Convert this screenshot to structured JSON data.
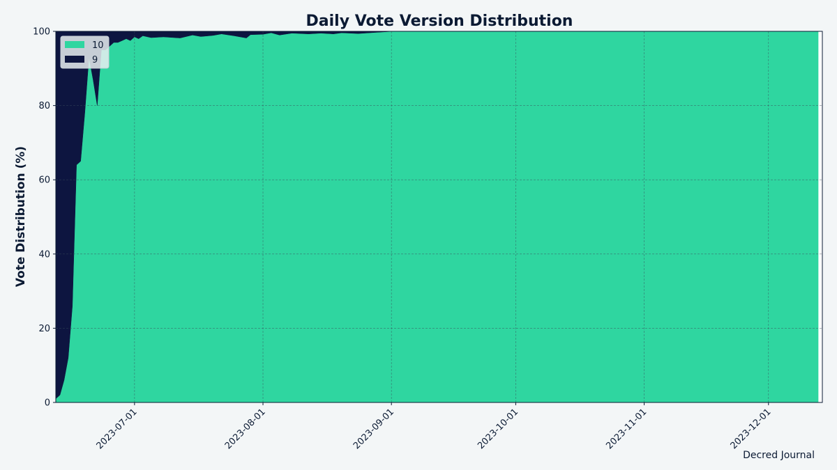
{
  "chart_data": {
    "type": "area",
    "stacked": true,
    "title": "Daily Vote Version Distribution",
    "xlabel": "",
    "ylabel": "Vote Distribution (%)",
    "ylim": [
      0,
      100
    ],
    "xlim": [
      "2023-06-12",
      "2023-12-14"
    ],
    "yticks": [
      0,
      20,
      40,
      60,
      80,
      100
    ],
    "xticks": [
      "2023-07-01",
      "2023-08-01",
      "2023-09-01",
      "2023-10-01",
      "2023-11-01",
      "2023-12-01"
    ],
    "grid": true,
    "legend_position": "top-left",
    "series": [
      {
        "name": "10",
        "color": "#2fd6a0",
        "points": [
          [
            "2023-06-12",
            1
          ],
          [
            "2023-06-13",
            2
          ],
          [
            "2023-06-14",
            6
          ],
          [
            "2023-06-15",
            12
          ],
          [
            "2023-06-16",
            26
          ],
          [
            "2023-06-17",
            64
          ],
          [
            "2023-06-18",
            65
          ],
          [
            "2023-06-19",
            78
          ],
          [
            "2023-06-20",
            93
          ],
          [
            "2023-06-21",
            87
          ],
          [
            "2023-06-22",
            80
          ],
          [
            "2023-06-23",
            95
          ],
          [
            "2023-06-24",
            95
          ],
          [
            "2023-06-25",
            96
          ],
          [
            "2023-06-26",
            97
          ],
          [
            "2023-06-27",
            97
          ],
          [
            "2023-06-28",
            97.5
          ],
          [
            "2023-06-29",
            98
          ],
          [
            "2023-06-30",
            97.5
          ],
          [
            "2023-07-01",
            98.5
          ],
          [
            "2023-07-02",
            98
          ],
          [
            "2023-07-03",
            98.8
          ],
          [
            "2023-07-05",
            98.3
          ],
          [
            "2023-07-08",
            98.5
          ],
          [
            "2023-07-12",
            98.2
          ],
          [
            "2023-07-15",
            99
          ],
          [
            "2023-07-17",
            98.6
          ],
          [
            "2023-07-20",
            98.9
          ],
          [
            "2023-07-22",
            99.3
          ],
          [
            "2023-07-25",
            98.8
          ],
          [
            "2023-07-28",
            98.2
          ],
          [
            "2023-07-29",
            99.1
          ],
          [
            "2023-08-01",
            99.2
          ],
          [
            "2023-08-03",
            99.6
          ],
          [
            "2023-08-05",
            99
          ],
          [
            "2023-08-08",
            99.5
          ],
          [
            "2023-08-12",
            99.3
          ],
          [
            "2023-08-15",
            99.5
          ],
          [
            "2023-08-18",
            99.3
          ],
          [
            "2023-08-20",
            99.6
          ],
          [
            "2023-08-24",
            99.4
          ],
          [
            "2023-08-28",
            99.7
          ],
          [
            "2023-08-31",
            99.9
          ],
          [
            "2023-09-01",
            100
          ],
          [
            "2023-12-13",
            100
          ]
        ]
      },
      {
        "name": "9",
        "color": "#0d1540",
        "points": [
          [
            "2023-06-12",
            99
          ],
          [
            "2023-06-13",
            98
          ],
          [
            "2023-06-14",
            94
          ],
          [
            "2023-06-15",
            88
          ],
          [
            "2023-06-16",
            74
          ],
          [
            "2023-06-17",
            36
          ],
          [
            "2023-06-18",
            35
          ],
          [
            "2023-06-19",
            22
          ],
          [
            "2023-06-20",
            7
          ],
          [
            "2023-06-21",
            13
          ],
          [
            "2023-06-22",
            20
          ],
          [
            "2023-06-23",
            5
          ],
          [
            "2023-06-24",
            5
          ],
          [
            "2023-06-25",
            4
          ],
          [
            "2023-06-26",
            3
          ],
          [
            "2023-06-27",
            3
          ],
          [
            "2023-06-28",
            2.5
          ],
          [
            "2023-06-29",
            2
          ],
          [
            "2023-06-30",
            2.5
          ],
          [
            "2023-07-01",
            1.5
          ],
          [
            "2023-07-02",
            2
          ],
          [
            "2023-07-03",
            1.2
          ],
          [
            "2023-07-05",
            1.7
          ],
          [
            "2023-07-08",
            1.5
          ],
          [
            "2023-07-12",
            1.8
          ],
          [
            "2023-07-15",
            1
          ],
          [
            "2023-07-17",
            1.4
          ],
          [
            "2023-07-20",
            1.1
          ],
          [
            "2023-07-22",
            0.7
          ],
          [
            "2023-07-25",
            1.2
          ],
          [
            "2023-07-28",
            1.8
          ],
          [
            "2023-07-29",
            0.9
          ],
          [
            "2023-08-01",
            0.8
          ],
          [
            "2023-08-03",
            0.4
          ],
          [
            "2023-08-05",
            1
          ],
          [
            "2023-08-08",
            0.5
          ],
          [
            "2023-08-12",
            0.7
          ],
          [
            "2023-08-15",
            0.5
          ],
          [
            "2023-08-18",
            0.7
          ],
          [
            "2023-08-20",
            0.4
          ],
          [
            "2023-08-24",
            0.6
          ],
          [
            "2023-08-28",
            0.3
          ],
          [
            "2023-08-31",
            0.1
          ],
          [
            "2023-09-01",
            0
          ],
          [
            "2023-12-13",
            0
          ]
        ]
      }
    ],
    "annotations": [
      "Decred Journal"
    ],
    "background_color": "#f3f6f7"
  }
}
